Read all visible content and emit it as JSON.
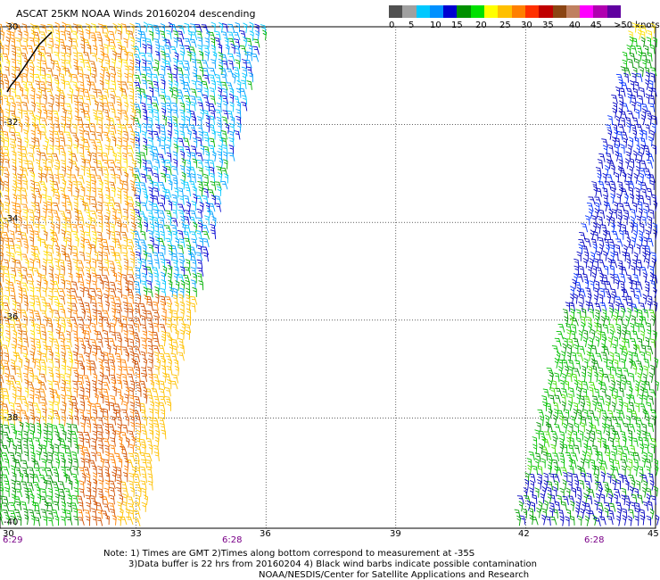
{
  "title": "ASCAT 25KM NOAA Winds 20160204 descending",
  "legend": {
    "colors": [
      "#505050",
      "#a0a0a0",
      "#00c8ff",
      "#0090ff",
      "#0000d0",
      "#009000",
      "#00e000",
      "#ffff00",
      "#ffc000",
      "#ff8000",
      "#ff3000",
      "#c00000",
      "#8b4513",
      "#c08060",
      "#ff00ff",
      "#b000b0",
      "#6000a0"
    ],
    "ticks": [
      "0",
      "5",
      "10",
      "15",
      "20",
      "25",
      "30",
      "35",
      "40",
      "45",
      ">50 knots"
    ]
  },
  "map": {
    "lat_labels": [
      "-30",
      "-32",
      "-34",
      "-36",
      "-38",
      "-40"
    ],
    "lon_labels": [
      "30",
      "33",
      "36",
      "39",
      "42",
      "45"
    ],
    "time_labels": [
      "6:29",
      "6:28",
      "6:28"
    ]
  },
  "notes": {
    "line1": "Note: 1) Times are GMT 2)Times along bottom correspond to measurement at -35S",
    "line2": "3)Data buffer is 22 hrs from 20160204 4) Black wind barbs indicate possible contamination",
    "line3": "NOAA/NESDIS/Center for Satellite Applications and Research"
  }
}
